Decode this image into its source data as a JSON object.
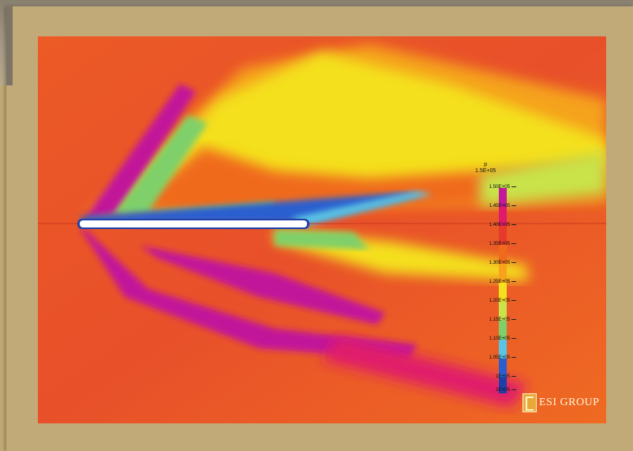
{
  "colorbar": {
    "variable": "p",
    "top_label": "1.5E+05",
    "ticks": [
      "1.50E+05",
      "1.45E+05",
      "1.40E+05",
      "1.35E+05",
      "1.30E+05",
      "1.25E+05",
      "1.20E+05",
      "1.15E+05",
      "1.10E+05",
      "1.05E+05",
      "1E+05",
      "1E+05"
    ],
    "colors": [
      "#c2189a",
      "#e01a6a",
      "#e63a2a",
      "#f06a1e",
      "#f7a21a",
      "#f4e01c",
      "#c9e34a",
      "#7fd06a",
      "#58c4e6",
      "#2a5ecf",
      "#1d3fa8"
    ]
  },
  "brand": {
    "name": "ESI GROUP",
    "accent": "#e9a93a"
  },
  "field_colors": {
    "background": "#e8562a",
    "hot": "#f7ef2a",
    "warm": "#f5a21c",
    "cool": "#7fd06a",
    "cold": "#2a5ecf",
    "high": "#c2189a",
    "body": "#ffffff"
  }
}
